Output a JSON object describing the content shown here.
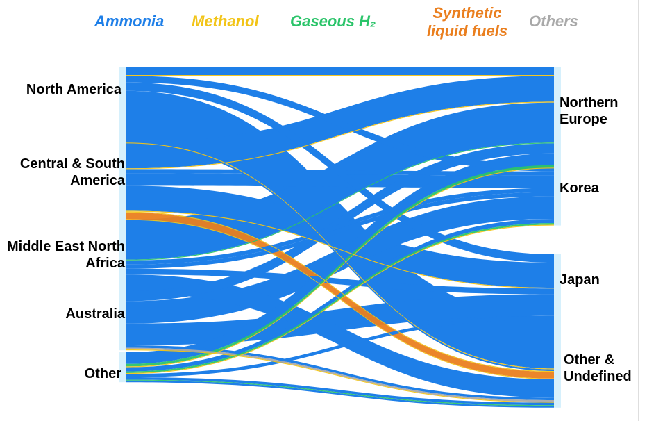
{
  "legend": [
    {
      "key": "ammonia",
      "label": "Ammonia",
      "color": "#1e7fe8"
    },
    {
      "key": "methanol",
      "label": "Methanol",
      "color": "#f2c417"
    },
    {
      "key": "h2",
      "label": "Gaseous H₂",
      "color": "#2bc46a"
    },
    {
      "key": "synth",
      "label": "Synthetic liquid fuels",
      "color": "#ea7f1f"
    },
    {
      "key": "others",
      "label": "Others",
      "color": "#a9a9a9"
    }
  ],
  "sources": [
    {
      "id": "na",
      "label": "North America"
    },
    {
      "id": "csa",
      "label": "Central & South America"
    },
    {
      "id": "mena",
      "label": "Middle East North Africa"
    },
    {
      "id": "aus",
      "label": "Australia"
    },
    {
      "id": "other",
      "label": "Other"
    }
  ],
  "targets": [
    {
      "id": "neu",
      "label": "Northern Europe"
    },
    {
      "id": "kor",
      "label": "Korea"
    },
    {
      "id": "jpn",
      "label": "Japan"
    },
    {
      "id": "oth",
      "label": "Other & Undefined"
    }
  ],
  "flows": [
    {
      "from": "na",
      "to": "neu",
      "carrier": "ammonia",
      "value": 10
    },
    {
      "from": "na",
      "to": "neu",
      "carrier": "methanol",
      "value": 1
    },
    {
      "from": "na",
      "to": "kor",
      "carrier": "ammonia",
      "value": 8
    },
    {
      "from": "na",
      "to": "jpn",
      "carrier": "ammonia",
      "value": 10
    },
    {
      "from": "na",
      "to": "oth",
      "carrier": "ammonia",
      "value": 62
    },
    {
      "from": "na",
      "to": "oth",
      "carrier": "methanol",
      "value": 1
    },
    {
      "from": "na",
      "to": "oth",
      "carrier": "ammonia",
      "value": 2
    },
    {
      "from": "csa",
      "to": "neu",
      "carrier": "ammonia",
      "value": 31
    },
    {
      "from": "csa",
      "to": "neu",
      "carrier": "methanol",
      "value": 1
    },
    {
      "from": "csa",
      "to": "kor",
      "carrier": "ammonia",
      "value": 5
    },
    {
      "from": "csa",
      "to": "kor",
      "carrier": "ammonia",
      "value": 15
    },
    {
      "from": "csa",
      "to": "jpn",
      "carrier": "ammonia",
      "value": 30
    },
    {
      "from": "csa",
      "to": "jpn",
      "carrier": "methanol",
      "value": 1
    },
    {
      "from": "csa",
      "to": "oth",
      "carrier": "methanol",
      "value": 1
    },
    {
      "from": "csa",
      "to": "oth",
      "carrier": "synth",
      "value": 8
    },
    {
      "from": "csa",
      "to": "oth",
      "carrier": "methanol",
      "value": 1
    },
    {
      "from": "mena",
      "to": "neu",
      "carrier": "ammonia",
      "value": 48
    },
    {
      "from": "mena",
      "to": "neu",
      "carrier": "h2",
      "value": 1
    },
    {
      "from": "mena",
      "to": "kor",
      "carrier": "ammonia",
      "value": 5
    },
    {
      "from": "mena",
      "to": "kor",
      "carrier": "ammonia",
      "value": 5
    },
    {
      "from": "mena",
      "to": "jpn",
      "carrier": "ammonia",
      "value": 7
    },
    {
      "from": "mena",
      "to": "oth",
      "carrier": "ammonia",
      "value": 22
    },
    {
      "from": "aus",
      "to": "neu",
      "carrier": "ammonia",
      "value": 12
    },
    {
      "from": "aus",
      "to": "kor",
      "carrier": "ammonia",
      "value": 27
    },
    {
      "from": "aus",
      "to": "jpn",
      "carrier": "ammonia",
      "value": 26
    },
    {
      "from": "aus",
      "to": "oth",
      "carrier": "ammonia",
      "value": 3
    },
    {
      "from": "aus",
      "to": "oth",
      "carrier": "others",
      "value": 2
    },
    {
      "from": "aus",
      "to": "oth",
      "carrier": "methanol",
      "value": 1
    },
    {
      "from": "other",
      "to": "neu",
      "carrier": "ammonia",
      "value": 14
    },
    {
      "from": "other",
      "to": "neu",
      "carrier": "h2",
      "value": 3
    },
    {
      "from": "other",
      "to": "neu",
      "carrier": "methanol",
      "value": 1
    },
    {
      "from": "other",
      "to": "kor",
      "carrier": "ammonia",
      "value": 5
    },
    {
      "from": "other",
      "to": "kor",
      "carrier": "h2",
      "value": 2
    },
    {
      "from": "other",
      "to": "kor",
      "carrier": "methanol",
      "value": 1
    },
    {
      "from": "other",
      "to": "jpn",
      "carrier": "ammonia",
      "value": 4
    },
    {
      "from": "other",
      "to": "oth",
      "carrier": "ammonia",
      "value": 3
    },
    {
      "from": "other",
      "to": "oth",
      "carrier": "h2",
      "value": 1
    },
    {
      "from": "other",
      "to": "oth",
      "carrier": "ammonia",
      "value": 2
    }
  ],
  "node_color": "#d6f0fc"
}
